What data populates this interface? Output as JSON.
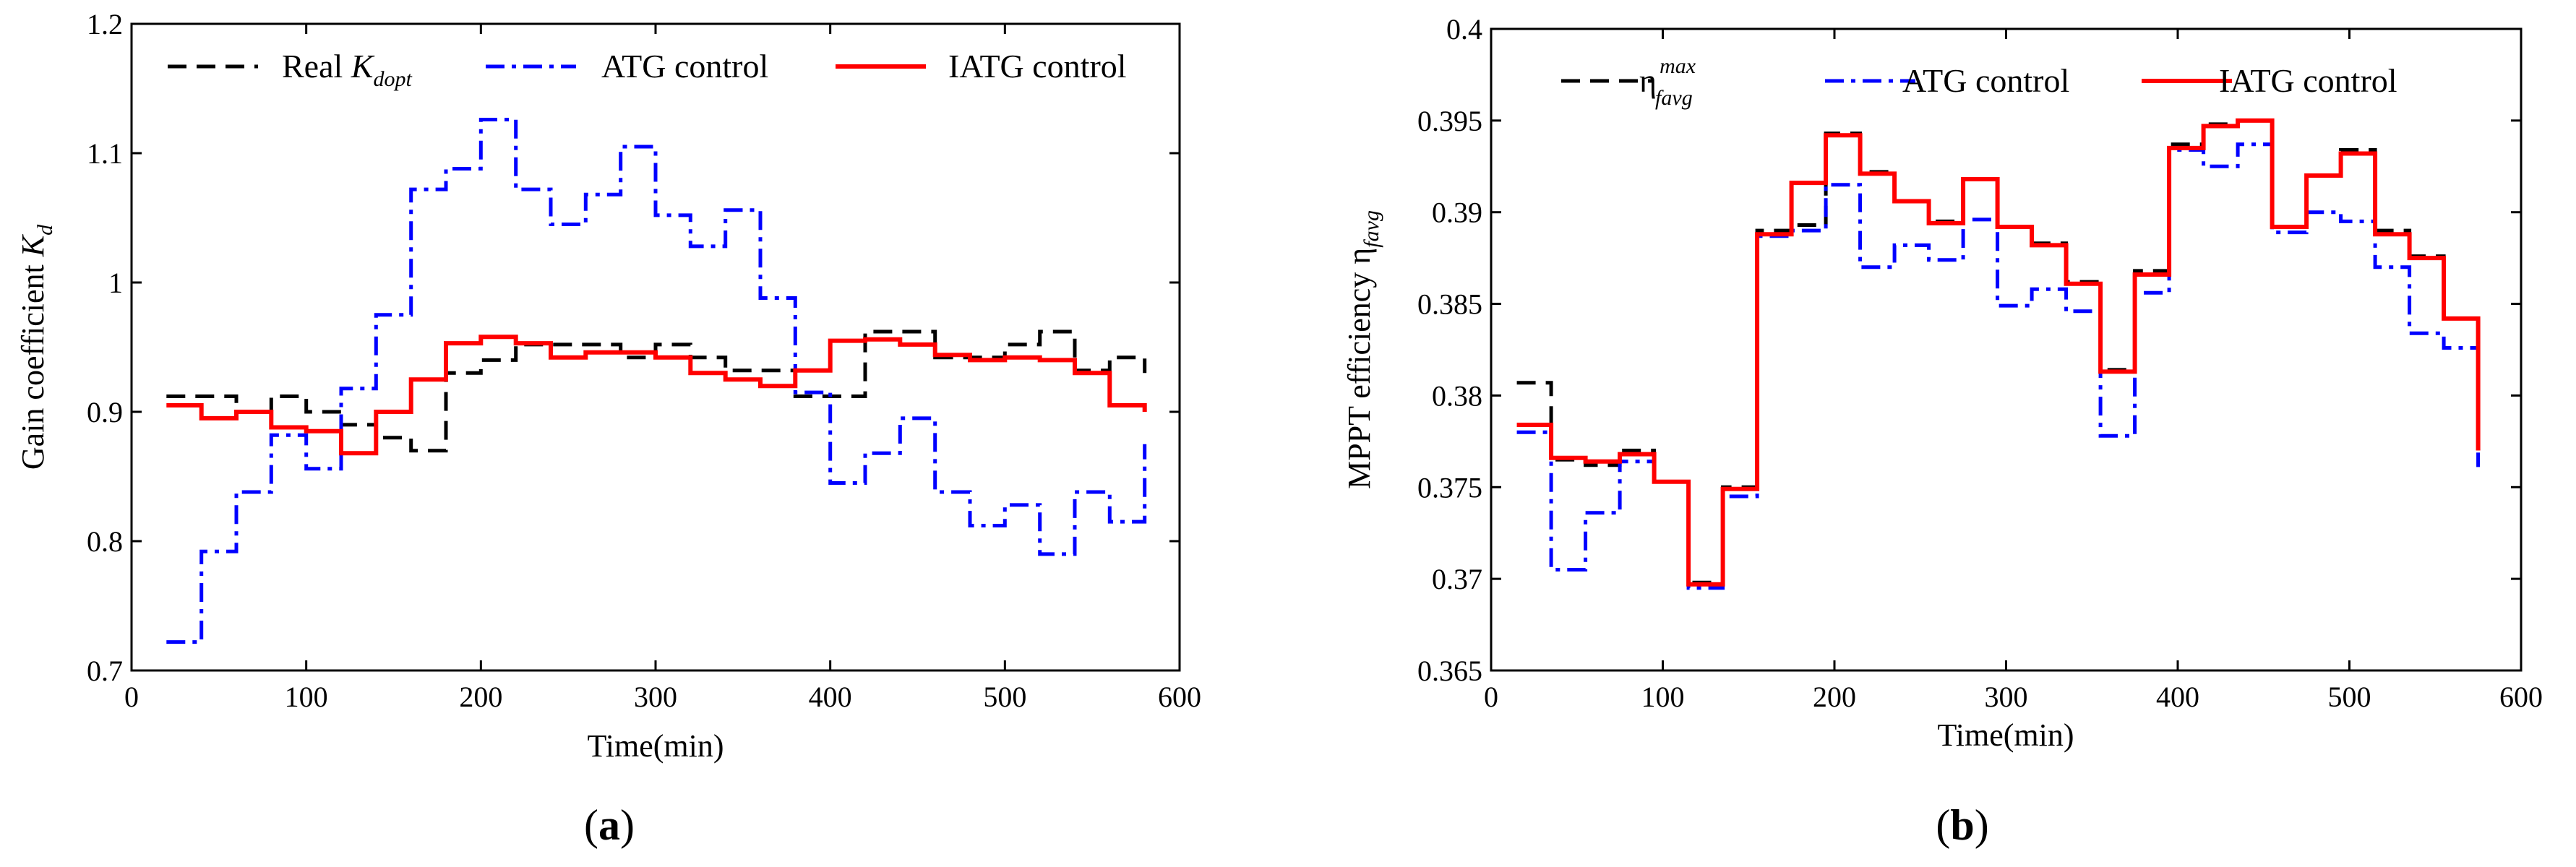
{
  "chart_data": [
    {
      "type": "line",
      "panel_label": "(a)",
      "xlabel": "Time(min)",
      "ylabel": {
        "main": "Gain coefficient ",
        "symbol": "K",
        "sub": "d"
      },
      "xlim": [
        0,
        600
      ],
      "ylim": [
        0.7,
        1.2
      ],
      "xticks": [
        0,
        100,
        200,
        300,
        400,
        500,
        600
      ],
      "yticks": [
        0.7,
        0.8,
        0.9,
        1,
        1.1,
        1.2
      ],
      "ytick_labels": [
        "0.7",
        "0.8",
        "0.9",
        "1",
        "1.1",
        "1.2"
      ],
      "grid": false,
      "legend": "top",
      "series": [
        {
          "name": "Real K_dopt",
          "label_parts": {
            "main": "Real ",
            "symbol": "K",
            "sub": "dopt"
          },
          "style": "dashed",
          "color": "#000000",
          "x": [
            20,
            40,
            60,
            80,
            100,
            120,
            140,
            160,
            180,
            200,
            220,
            240,
            260,
            280,
            300,
            320,
            340,
            360,
            380,
            400,
            420,
            440,
            460,
            480,
            500,
            520,
            540,
            560,
            580
          ],
          "y": [
            0.912,
            0.912,
            0.9,
            0.912,
            0.9,
            0.89,
            0.88,
            0.87,
            0.93,
            0.94,
            0.952,
            0.952,
            0.952,
            0.942,
            0.952,
            0.942,
            0.932,
            0.932,
            0.912,
            0.912,
            0.962,
            0.962,
            0.942,
            0.942,
            0.952,
            0.962,
            0.932,
            0.942,
            0.93
          ]
        },
        {
          "name": "ATG control",
          "style": "dashdot",
          "color": "#0000ff",
          "x": [
            20,
            40,
            60,
            80,
            100,
            120,
            140,
            160,
            180,
            200,
            220,
            240,
            260,
            280,
            300,
            320,
            340,
            360,
            380,
            400,
            420,
            440,
            460,
            480,
            500,
            520,
            540,
            560,
            580
          ],
          "y": [
            0.722,
            0.792,
            0.838,
            0.882,
            0.856,
            0.918,
            0.975,
            1.072,
            1.088,
            1.126,
            1.072,
            1.045,
            1.068,
            1.105,
            1.052,
            1.028,
            1.056,
            0.988,
            0.915,
            0.845,
            0.868,
            0.895,
            0.838,
            0.812,
            0.828,
            0.79,
            0.838,
            0.815,
            0.875
          ]
        },
        {
          "name": "IATG control",
          "style": "solid",
          "color": "#ff0000",
          "x": [
            20,
            40,
            60,
            80,
            100,
            120,
            140,
            160,
            180,
            200,
            220,
            240,
            260,
            280,
            300,
            320,
            340,
            360,
            380,
            400,
            420,
            440,
            460,
            480,
            500,
            520,
            540,
            560,
            580
          ],
          "y": [
            0.905,
            0.895,
            0.9,
            0.888,
            0.885,
            0.868,
            0.9,
            0.925,
            0.953,
            0.958,
            0.953,
            0.942,
            0.946,
            0.946,
            0.942,
            0.93,
            0.925,
            0.92,
            0.932,
            0.955,
            0.956,
            0.952,
            0.944,
            0.94,
            0.942,
            0.94,
            0.93,
            0.905,
            0.9
          ]
        }
      ]
    },
    {
      "type": "line",
      "panel_label": "(b)",
      "xlabel": "Time(min)",
      "ylabel": {
        "main": "MPPT efficiency  ",
        "symbol": "η",
        "sub": "favg"
      },
      "xlim": [
        0,
        600
      ],
      "ylim": [
        0.365,
        0.4
      ],
      "xticks": [
        0,
        100,
        200,
        300,
        400,
        500,
        600
      ],
      "yticks": [
        0.365,
        0.37,
        0.375,
        0.38,
        0.385,
        0.39,
        0.395,
        0.4
      ],
      "ytick_labels": [
        "0.365",
        "0.37",
        "0.375",
        "0.38",
        "0.385",
        "0.39",
        "0.395",
        "0.4"
      ],
      "grid": false,
      "legend": "top",
      "series": [
        {
          "name": "η favg max",
          "label_parts": {
            "symbol": "η",
            "sub": "favg",
            "sup": "max"
          },
          "style": "dashed",
          "color": "#000000",
          "x": [
            15,
            35,
            55,
            75,
            95,
            115,
            135,
            155,
            175,
            195,
            215,
            235,
            255,
            275,
            295,
            315,
            335,
            355,
            375,
            395,
            415,
            435,
            455,
            475,
            495,
            515,
            535,
            555,
            575
          ],
          "y": [
            0.3807,
            0.3765,
            0.3762,
            0.377,
            0.3753,
            0.3698,
            0.375,
            0.389,
            0.3893,
            0.3943,
            0.3922,
            0.3906,
            0.3895,
            0.3918,
            0.3892,
            0.3883,
            0.3862,
            0.3814,
            0.3868,
            0.3937,
            0.3948,
            0.395,
            0.3892,
            0.392,
            0.3934,
            0.389,
            0.3876,
            0.3842,
            0.377
          ]
        },
        {
          "name": "ATG control",
          "style": "dashdot",
          "color": "#0000ff",
          "x": [
            15,
            35,
            55,
            75,
            95,
            115,
            135,
            155,
            175,
            195,
            215,
            235,
            255,
            275,
            295,
            315,
            335,
            355,
            375,
            395,
            415,
            435,
            455,
            475,
            495,
            515,
            535,
            555,
            575
          ],
          "y": [
            0.378,
            0.3705,
            0.3736,
            0.3764,
            0.3753,
            0.3695,
            0.3745,
            0.3887,
            0.389,
            0.3915,
            0.387,
            0.3882,
            0.3874,
            0.3896,
            0.3849,
            0.3858,
            0.3846,
            0.3778,
            0.3856,
            0.3934,
            0.3925,
            0.3937,
            0.3889,
            0.39,
            0.3895,
            0.387,
            0.3834,
            0.3826,
            0.3761
          ]
        },
        {
          "name": "IATG control",
          "style": "solid",
          "color": "#ff0000",
          "x": [
            15,
            35,
            55,
            75,
            95,
            115,
            135,
            155,
            175,
            195,
            215,
            235,
            255,
            275,
            295,
            315,
            335,
            355,
            375,
            395,
            415,
            435,
            455,
            475,
            495,
            515,
            535,
            555,
            575
          ],
          "y": [
            0.3784,
            0.3766,
            0.3764,
            0.3768,
            0.3753,
            0.3697,
            0.3749,
            0.3888,
            0.3916,
            0.3942,
            0.3921,
            0.3906,
            0.3894,
            0.3918,
            0.3892,
            0.3882,
            0.3861,
            0.3813,
            0.3866,
            0.3935,
            0.3947,
            0.395,
            0.3892,
            0.392,
            0.3932,
            0.3888,
            0.3875,
            0.3842,
            0.377
          ]
        }
      ]
    }
  ]
}
